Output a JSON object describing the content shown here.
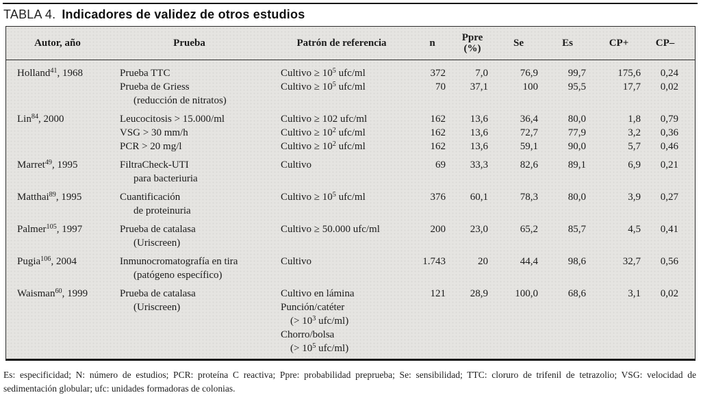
{
  "title": {
    "label": "TABLA 4.",
    "text": "Indicadores de validez de otros estudios"
  },
  "header": {
    "autor": "Autor, año",
    "prueba": "Prueba",
    "patron": "Patrón de referencia",
    "n": "n",
    "ppre_line1": "Ppre",
    "ppre_line2": "(%)",
    "se": "Se",
    "es": "Es",
    "cp_plus": "CP+",
    "cp_minus": "CP–"
  },
  "table": {
    "groups": [
      {
        "lines": [
          {
            "autor": "Holland⁴¹, 1968",
            "prueba": "Prueba TTC",
            "patron": "Cultivo ≥ 10⁵ ufc/ml",
            "n": "372",
            "ppre": "7,0",
            "se": "76,9",
            "es": "99,7",
            "cp_plus": "175,6",
            "cp_minus": "0,24"
          },
          {
            "prueba": "Prueba de Griess",
            "patron": "Cultivo ≥ 10⁵ ufc/ml",
            "n": "70",
            "ppre": "37,1",
            "se": "100",
            "es": "95,5",
            "cp_plus": "17,7",
            "cp_minus": "0,02"
          },
          {
            "prueba": "(reducción de nitratos)",
            "prueba_indent": true
          }
        ]
      },
      {
        "lines": [
          {
            "autor": "Lin⁸⁴, 2000",
            "prueba": "Leucocitosis > 15.000/ml",
            "patron": "Cultivo ≥ 102 ufc/ml",
            "n": "162",
            "ppre": "13,6",
            "se": "36,4",
            "es": "80,0",
            "cp_plus": "1,8",
            "cp_minus": "0,79"
          },
          {
            "prueba": "VSG > 30 mm/h",
            "patron": "Cultivo ≥ 10² ufc/ml",
            "n": "162",
            "ppre": "13,6",
            "se": "72,7",
            "es": "77,9",
            "cp_plus": "3,2",
            "cp_minus": "0,36"
          },
          {
            "prueba": "PCR > 20 mg/l",
            "patron": "Cultivo ≥ 10² ufc/ml",
            "n": "162",
            "ppre": "13,6",
            "se": "59,1",
            "es": "90,0",
            "cp_plus": "5,7",
            "cp_minus": "0,46"
          }
        ]
      },
      {
        "lines": [
          {
            "autor": "Marret⁴⁹, 1995",
            "prueba": "FiltraCheck-UTI",
            "patron": "Cultivo",
            "n": "69",
            "ppre": "33,3",
            "se": "82,6",
            "es": "89,1",
            "cp_plus": "6,9",
            "cp_minus": "0,21"
          },
          {
            "prueba": "para bacteriuria",
            "prueba_indent": true
          }
        ]
      },
      {
        "lines": [
          {
            "autor": "Matthai⁸⁹, 1995",
            "prueba": "Cuantificación",
            "patron": "Cultivo ≥ 10⁵ ufc/ml",
            "n": "376",
            "ppre": "60,1",
            "se": "78,3",
            "es": "80,0",
            "cp_plus": "3,9",
            "cp_minus": "0,27"
          },
          {
            "prueba": "de proteinuria",
            "prueba_indent": true
          }
        ]
      },
      {
        "lines": [
          {
            "autor": "Palmer¹⁰⁵, 1997",
            "prueba": "Prueba de catalasa",
            "patron": "Cultivo ≥ 50.000 ufc/ml",
            "n": "200",
            "ppre": "23,0",
            "se": "65,2",
            "es": "85,7",
            "cp_plus": "4,5",
            "cp_minus": "0,41"
          },
          {
            "prueba": "(Uriscreen)",
            "prueba_indent": true
          }
        ]
      },
      {
        "lines": [
          {
            "autor": "Pugia¹⁰⁶, 2004",
            "prueba": "Inmunocromatografía en tira",
            "patron": "Cultivo",
            "n": "1.743",
            "ppre": "20",
            "se": "44,4",
            "es": "98,6",
            "cp_plus": "32,7",
            "cp_minus": "0,56"
          },
          {
            "prueba": "(patógeno específico)",
            "prueba_indent": true
          }
        ]
      },
      {
        "lines": [
          {
            "autor": "Waisman⁶⁰, 1999",
            "prueba": "Prueba de catalasa",
            "patron": "Cultivo en lámina",
            "n": "121",
            "ppre": "28,9",
            "se": "100,0",
            "es": "68,6",
            "cp_plus": "3,1",
            "cp_minus": "0,02"
          },
          {
            "prueba": "(Uriscreen)",
            "prueba_indent": true,
            "patron": "Punción/catéter"
          },
          {
            "patron": "(> 10³ ufc/ml)",
            "patron_indent": true
          },
          {
            "patron": "Chorro/bolsa"
          },
          {
            "patron": "(> 10⁵ ufc/ml)",
            "patron_indent": true
          }
        ]
      }
    ]
  },
  "footnote": "Es: especificidad; N: número de estudios; PCR: proteína C reactiva; Ppre: probabilidad preprueba; Se: sensibilidad; TTC: cloruro de trifenil de tetrazolio; VSG: velocidad de sedimentación globular; ufc: unidades formadoras de colonias."
}
